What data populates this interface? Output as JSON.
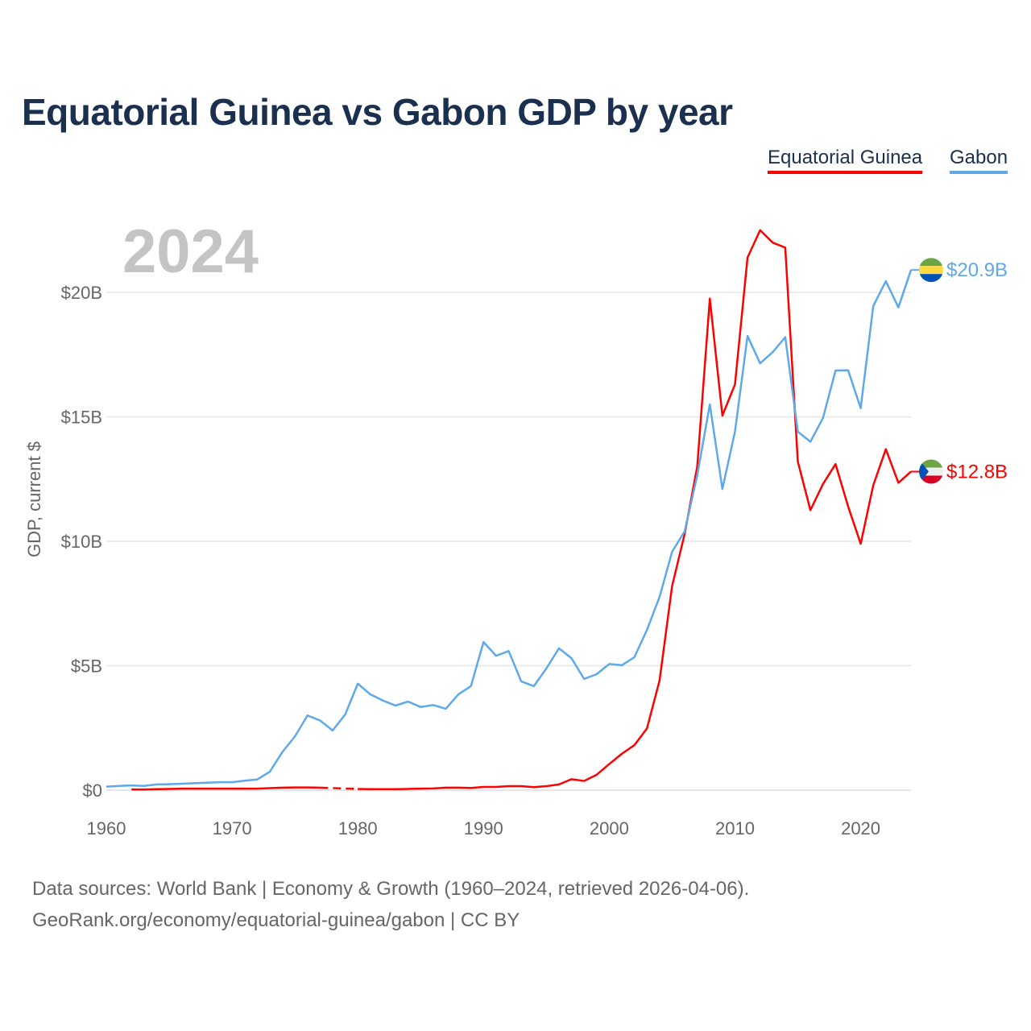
{
  "chart_data": {
    "type": "line",
    "title": "Equatorial Guinea vs Gabon GDP by year",
    "year_watermark": "2024",
    "ylabel": "GDP, current $",
    "xlabel": "",
    "xlim": [
      1960,
      2024
    ],
    "ylim": [
      0,
      22.5
    ],
    "x_ticks": [
      1960,
      1970,
      1980,
      1990,
      2000,
      2010,
      2020
    ],
    "x_tick_labels": [
      "1960",
      "1970",
      "1980",
      "1990",
      "2000",
      "2010",
      "2020"
    ],
    "y_ticks": [
      0,
      5,
      10,
      15,
      20
    ],
    "y_tick_labels": [
      "$0",
      "$5B",
      "$10B",
      "$15B",
      "$20B"
    ],
    "grid": true,
    "legend_placement": "top-right",
    "units": "billion US$",
    "series": [
      {
        "name": "Equatorial Guinea",
        "color": "#ff0000",
        "end_label": "$12.8B",
        "start_year": 1962,
        "values": [
          0.03,
          0.03,
          0.04,
          0.05,
          0.06,
          0.06,
          0.06,
          0.06,
          0.06,
          0.06,
          0.06,
          0.08,
          0.1,
          0.11,
          0.11,
          0.1,
          null,
          null,
          0.05,
          0.04,
          0.04,
          0.04,
          0.05,
          0.06,
          0.07,
          0.1,
          0.1,
          0.09,
          0.13,
          0.13,
          0.16,
          0.16,
          0.12,
          0.16,
          0.23,
          0.44,
          0.37,
          0.62,
          1.05,
          1.46,
          1.81,
          2.48,
          4.4,
          8.2,
          10.3,
          13.0,
          19.75,
          15.05,
          16.3,
          21.4,
          22.5,
          22.0,
          21.8,
          13.2,
          11.25,
          12.3,
          13.1,
          11.4,
          9.9,
          12.25,
          13.7,
          12.35,
          12.8
        ]
      },
      {
        "name": "Gabon",
        "color": "#5ea8ec",
        "end_label": "$20.9B",
        "start_year": 1960,
        "values": [
          0.14,
          0.17,
          0.19,
          0.17,
          0.23,
          0.24,
          0.26,
          0.28,
          0.3,
          0.32,
          0.32,
          0.38,
          0.43,
          0.74,
          1.53,
          2.16,
          3.0,
          2.8,
          2.4,
          3.04,
          4.28,
          3.85,
          3.6,
          3.4,
          3.56,
          3.34,
          3.42,
          3.27,
          3.85,
          4.18,
          5.95,
          5.4,
          5.59,
          4.37,
          4.18,
          4.89,
          5.7,
          5.3,
          4.47,
          4.66,
          5.07,
          5.02,
          5.34,
          6.44,
          7.76,
          9.58,
          10.4,
          12.65,
          15.5,
          12.1,
          14.4,
          18.25,
          17.15,
          17.6,
          18.2,
          14.4,
          14.0,
          14.95,
          16.86,
          16.87,
          15.35,
          19.45,
          20.45,
          19.4,
          20.9
        ]
      }
    ]
  },
  "footer": {
    "line1": "Data sources: World Bank | Economy & Growth (1960–2024, retrieved 2026-04-06).",
    "line2": "GeoRank.org/economy/equatorial-guinea/gabon | CC BY"
  }
}
